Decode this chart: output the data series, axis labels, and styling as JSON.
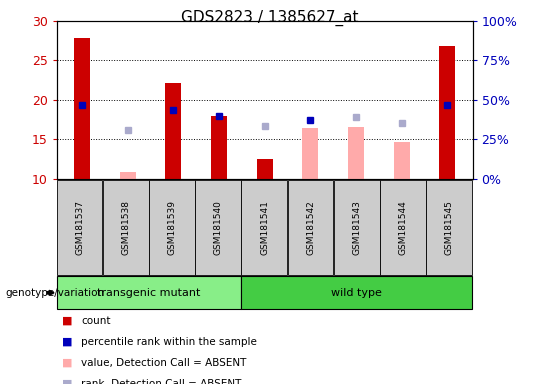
{
  "title": "GDS2823 / 1385627_at",
  "samples": [
    "GSM181537",
    "GSM181538",
    "GSM181539",
    "GSM181540",
    "GSM181541",
    "GSM181542",
    "GSM181543",
    "GSM181544",
    "GSM181545"
  ],
  "groups": {
    "transgenic mutant": [
      0,
      1,
      2,
      3
    ],
    "wild type": [
      4,
      5,
      6,
      7,
      8
    ]
  },
  "red_bars": [
    27.8,
    null,
    22.2,
    18.0,
    12.5,
    null,
    null,
    null,
    26.8
  ],
  "pink_bars": [
    null,
    10.8,
    null,
    null,
    null,
    16.4,
    16.5,
    14.6,
    null
  ],
  "blue_squares": [
    19.3,
    null,
    18.7,
    18.0,
    null,
    17.4,
    null,
    null,
    19.3
  ],
  "light_blue_squares": [
    null,
    16.2,
    null,
    null,
    16.7,
    null,
    17.8,
    17.0,
    null
  ],
  "ylim": [
    10,
    30
  ],
  "yticks": [
    10,
    15,
    20,
    25,
    30
  ],
  "right_ytick_labels": [
    "0%",
    "25%",
    "50%",
    "75%",
    "100%"
  ],
  "red_color": "#cc0000",
  "pink_color": "#ffaaaa",
  "blue_color": "#0000bb",
  "light_blue_color": "#aaaacc",
  "group_color_transgenic": "#88ee88",
  "group_color_wild": "#44cc44",
  "left_tick_color": "#cc0000",
  "right_tick_color": "#0000bb"
}
